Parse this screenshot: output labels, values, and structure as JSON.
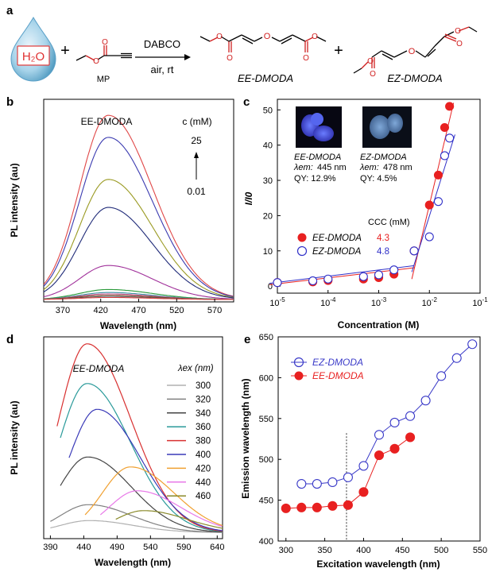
{
  "panels": {
    "a": "a",
    "b": "b",
    "c": "c",
    "d": "d",
    "e": "e"
  },
  "scheme": {
    "water": "H₂O",
    "plus1": "+",
    "reactant": "MP",
    "catalyst": "DABCO",
    "conditions": "air, rt",
    "plus2": "+",
    "product1": "EE-DMODA",
    "product2": "EZ-DMODA"
  },
  "chart_data": [
    {
      "id": "b",
      "type": "line",
      "title": "EE-DMODA",
      "xlabel": "Wavelength (nm)",
      "ylabel": "PL intensity (au)",
      "xlim": [
        345,
        595
      ],
      "ylim": [
        0,
        1.0
      ],
      "xticks": [
        "370",
        "420",
        "470",
        "520",
        "570"
      ],
      "annotation": {
        "c_label": "c (mM)",
        "high": "25",
        "low": "0.01"
      },
      "peak_x": 430,
      "series": [
        {
          "color": "#e04848",
          "peak": 0.92
        },
        {
          "color": "#3a3ab0",
          "peak": 0.81
        },
        {
          "color": "#9a9a22",
          "peak": 0.6
        },
        {
          "color": "#1f2a78",
          "peak": 0.46
        },
        {
          "color": "#a0309a",
          "peak": 0.17
        },
        {
          "color": "#2a9a3a",
          "peak": 0.05
        },
        {
          "color": "#3a8fa0",
          "peak": 0.035
        },
        {
          "color": "#d0609a",
          "peak": 0.028
        },
        {
          "color": "#7a4a2a",
          "peak": 0.022
        },
        {
          "color": "#555555",
          "peak": 0.015
        },
        {
          "color": "#e04848",
          "peak": 0.01
        }
      ]
    },
    {
      "id": "c",
      "type": "scatter",
      "xlabel": "Concentration (M)",
      "ylabel": "I/I0",
      "xlog": true,
      "xlim_exp": [
        -5,
        -1
      ],
      "ylim": [
        -2,
        53
      ],
      "xticks": [
        "10-5",
        "10-4",
        "10-3",
        "10-2",
        "10-1"
      ],
      "yticks": [
        "0",
        "10",
        "20",
        "30",
        "40",
        "50"
      ],
      "inset": {
        "ee_name": "EE-DMODA",
        "ee_lambda": "445 nm",
        "ee_qy": "QY: 12.9%",
        "ez_name": "EZ-DMODA",
        "ez_lambda": "478 nm",
        "ez_qy": "QY: 4.5%",
        "lambda_label": "λem:"
      },
      "legend": {
        "header": "CCC (mM)",
        "ee_name": "EE-DMODA",
        "ee_ccc": "4.3",
        "ez_name": "EZ-DMODA",
        "ez_ccc": "4.8"
      },
      "series": [
        {
          "name": "EE-DMODA",
          "color": "#e82020",
          "filled": true,
          "x": [
            1e-05,
            5e-05,
            0.0001,
            0.0005,
            0.001,
            0.002,
            0.005,
            0.01,
            0.015,
            0.02,
            0.025
          ],
          "y": [
            1,
            1.2,
            1.6,
            2.0,
            2.4,
            3.4,
            10,
            23,
            31.5,
            45,
            51
          ]
        },
        {
          "name": "EZ-DMODA",
          "color": "#3030c8",
          "filled": false,
          "x": [
            1e-05,
            5e-05,
            0.0001,
            0.0005,
            0.001,
            0.002,
            0.005,
            0.01,
            0.015,
            0.02,
            0.025
          ],
          "y": [
            1,
            1.5,
            2,
            2.7,
            3.2,
            4.6,
            10,
            14,
            24,
            37,
            42
          ]
        }
      ]
    },
    {
      "id": "d",
      "type": "line",
      "title": "EE-DMODA",
      "xlabel": "Wavelength (nm)",
      "ylabel": "PL intensity (au)",
      "xlim": [
        380,
        648
      ],
      "ylim": [
        0,
        1.0
      ],
      "xticks": [
        "390",
        "440",
        "490",
        "540",
        "590",
        "640"
      ],
      "legend_header": "λex (nm)",
      "series": [
        {
          "name": "300",
          "color": "#b0b0b0",
          "peak_x": 448,
          "peak": 0.06,
          "start": 390
        },
        {
          "name": "320",
          "color": "#808080",
          "peak_x": 447,
          "peak": 0.14,
          "start": 390
        },
        {
          "name": "340",
          "color": "#444444",
          "peak_x": 446,
          "peak": 0.38,
          "start": 405
        },
        {
          "name": "360",
          "color": "#2a9a9a",
          "peak_x": 445,
          "peak": 0.75,
          "start": 405
        },
        {
          "name": "380",
          "color": "#d83030",
          "peak_x": 445,
          "peak": 0.95,
          "start": 400
        },
        {
          "name": "400",
          "color": "#3a3ab8",
          "peak_x": 460,
          "peak": 0.62,
          "start": 418
        },
        {
          "name": "420",
          "color": "#f0a030",
          "peak_x": 510,
          "peak": 0.33,
          "start": 442
        },
        {
          "name": "440",
          "color": "#e878e8",
          "peak_x": 520,
          "peak": 0.21,
          "start": 465
        },
        {
          "name": "460",
          "color": "#8a8a2a",
          "peak_x": 530,
          "peak": 0.11,
          "start": 488
        }
      ]
    },
    {
      "id": "e",
      "type": "line",
      "xlabel": "Excitation wavelength (nm)",
      "ylabel": "Emission wavelength (nm)",
      "xlim": [
        290,
        550
      ],
      "ylim": [
        400,
        650
      ],
      "xticks": [
        "300",
        "350",
        "400",
        "450",
        "500",
        "550"
      ],
      "yticks": [
        "400",
        "450",
        "500",
        "550",
        "600",
        "650"
      ],
      "vline": 378,
      "series": [
        {
          "name": "EZ-DMODA",
          "color": "#3a3ac8",
          "filled": false,
          "x": [
            320,
            340,
            360,
            380,
            400,
            420,
            440,
            460,
            480,
            500,
            520,
            540
          ],
          "y": [
            470,
            470,
            472,
            478,
            492,
            530,
            545,
            553,
            572,
            602,
            624,
            641
          ]
        },
        {
          "name": "EE-DMODA",
          "color": "#e82020",
          "filled": true,
          "x": [
            300,
            320,
            340,
            360,
            380,
            400,
            420,
            440,
            460
          ],
          "y": [
            440,
            441,
            441,
            443,
            444,
            460,
            505,
            513,
            527
          ]
        }
      ]
    }
  ]
}
